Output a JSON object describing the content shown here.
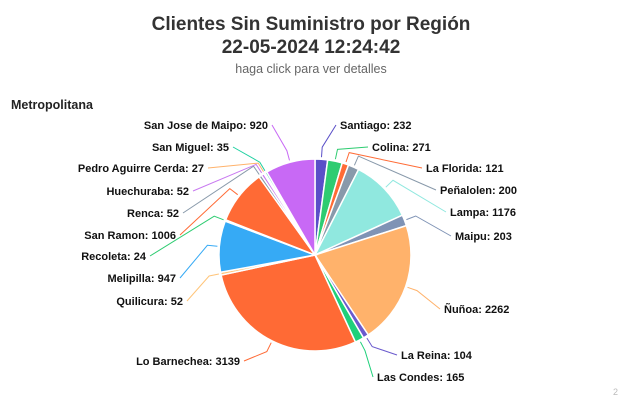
{
  "title_line1": "Clientes Sin Suministro por Región",
  "title_line2": "22-05-2024 12:24:42",
  "subtitle": "haga click para ver detalles",
  "region": "Metropolitana",
  "credit": "2",
  "chart_data": {
    "type": "pie",
    "title": "Clientes Sin Suministro por Región",
    "subtitle": "haga click para ver detalles",
    "categories": [
      "Santiago",
      "Colina",
      "La Florida",
      "Peñalolen",
      "Lampa",
      "Maipu",
      "Ñuñoa",
      "La Reina",
      "Las Condes",
      "Lo Barnechea",
      "Quilicura",
      "Melipilla",
      "Recoleta",
      "San Ramon",
      "Renca",
      "Huechuraba",
      "Pedro Aguirre Cerda",
      "San Miguel",
      "San Jose de Maipo"
    ],
    "values": [
      232,
      271,
      121,
      200,
      1176,
      203,
      2262,
      104,
      165,
      3139,
      52,
      947,
      24,
      1006,
      52,
      52,
      27,
      35,
      920
    ],
    "colors": [
      "#5a4fc8",
      "#2ecc71",
      "#ff6b35",
      "#8899aa",
      "#90e8df",
      "#7f93b5",
      "#ffb26b",
      "#6a5acd",
      "#1ed07a",
      "#ff6a35",
      "#ffc57a",
      "#36aaf5",
      "#2ecc71",
      "#ff6a35",
      "#8899aa",
      "#c879f0",
      "#ffb26b",
      "#1ed0a0",
      "#c869f5"
    ],
    "label_format": "{name}: {value}"
  }
}
